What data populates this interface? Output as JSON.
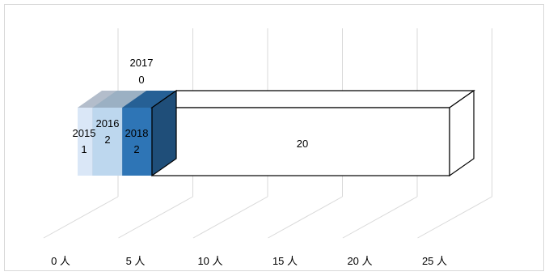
{
  "chart_data": {
    "type": "bar",
    "orientation": "horizontal-stacked-3d",
    "title": "",
    "xlabel": "",
    "ylabel": "",
    "unit": "人",
    "xlim": [
      0,
      25
    ],
    "x_ticks": [
      "0 人",
      "5 人",
      "10 人",
      "15 人",
      "20 人",
      "25 人"
    ],
    "grid": true,
    "legend": "none",
    "series": [
      {
        "name": "2015",
        "value": 1,
        "color": "#dae7f7"
      },
      {
        "name": "2016",
        "value": 2,
        "color": "#bdd7ee"
      },
      {
        "name": "2017",
        "value": 0,
        "color": "#9dc3e6"
      },
      {
        "name": "2018",
        "value": 2,
        "color": "#2e75b6"
      },
      {
        "name": "",
        "value": 20,
        "color": "#ffffff",
        "outline": "#000000"
      }
    ]
  }
}
